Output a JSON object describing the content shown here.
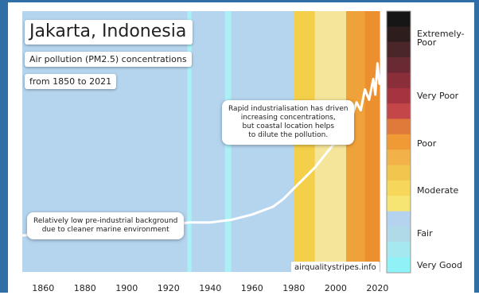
{
  "colors": {
    "frame": "#2f6fa6",
    "very_good": "#aaf0f5",
    "fair": "#b5d4ee",
    "moderate_light": "#f5e59a",
    "moderate": "#f4d04a",
    "poor": "#f0a23a",
    "very_poor": "#a83a45",
    "extremely_poor": "#2a1e1e",
    "line": "#ffffff"
  },
  "chart_data": {
    "type": "line",
    "title": "Jakarta, Indonesia",
    "subtitle_lines": [
      "Air pollution (PM2.5) concentrations",
      "from 1850 to 2021"
    ],
    "xlim": [
      1850,
      2021
    ],
    "x_ticks": [
      "1860",
      "1880",
      "1900",
      "1920",
      "1940",
      "1960",
      "1980",
      "2000",
      "2020"
    ],
    "ylim": [
      0,
      100
    ],
    "annotations": [
      {
        "id": "industrial",
        "lines": [
          "Rapid industrialisation has driven",
          "increasing concentrations,",
          "but coastal location helps",
          "to dilute the pollution."
        ]
      },
      {
        "id": "preindustrial",
        "lines": [
          "Relatively low pre-industrial background",
          "due to cleaner marine environment"
        ]
      }
    ],
    "source": "airqualitystripes.info",
    "legend": {
      "position": "right",
      "categories": [
        "Extremely-Poor",
        "Very Poor",
        "Poor",
        "Moderate",
        "Fair",
        "Very Good"
      ],
      "colors": [
        "#161616",
        "#2e1d1d",
        "#4a2628",
        "#6a2a33",
        "#8a2e3a",
        "#a6343f",
        "#c44648",
        "#e07a3a",
        "#ef9a35",
        "#f3b249",
        "#f1c64c",
        "#f6d75a",
        "#f6e572",
        "#b5d3ef",
        "#b1dae8",
        "#a6e8f0",
        "#8ff2f7"
      ]
    },
    "stripes": [
      {
        "from": 1850,
        "to": 1929,
        "category": "Fair"
      },
      {
        "from": 1929,
        "to": 1931,
        "category": "Very Good"
      },
      {
        "from": 1931,
        "to": 1947,
        "category": "Fair"
      },
      {
        "from": 1947,
        "to": 1950,
        "category": "Very Good"
      },
      {
        "from": 1950,
        "to": 1980,
        "category": "Fair"
      },
      {
        "from": 1980,
        "to": 1990,
        "category": "Moderate"
      },
      {
        "from": 1990,
        "to": 2005,
        "category": "Moderate"
      },
      {
        "from": 2005,
        "to": 2014,
        "category": "Poor"
      },
      {
        "from": 2014,
        "to": 2021,
        "category": "Poor"
      }
    ],
    "series": [
      {
        "x": [
          1850,
          1870,
          1890,
          1910,
          1930,
          1940,
          1950,
          1960,
          1970,
          1975,
          1980,
          1985,
          1990,
          1995,
          2000,
          2005,
          2008,
          2010,
          2012,
          2014,
          2016,
          2018,
          2019,
          2020,
          2021
        ],
        "values": [
          14,
          15,
          16,
          17,
          19,
          19,
          20,
          22,
          25,
          28,
          32,
          36,
          40,
          45,
          50,
          56,
          60,
          65,
          62,
          70,
          66,
          74,
          68,
          80,
          72
        ]
      }
    ]
  }
}
